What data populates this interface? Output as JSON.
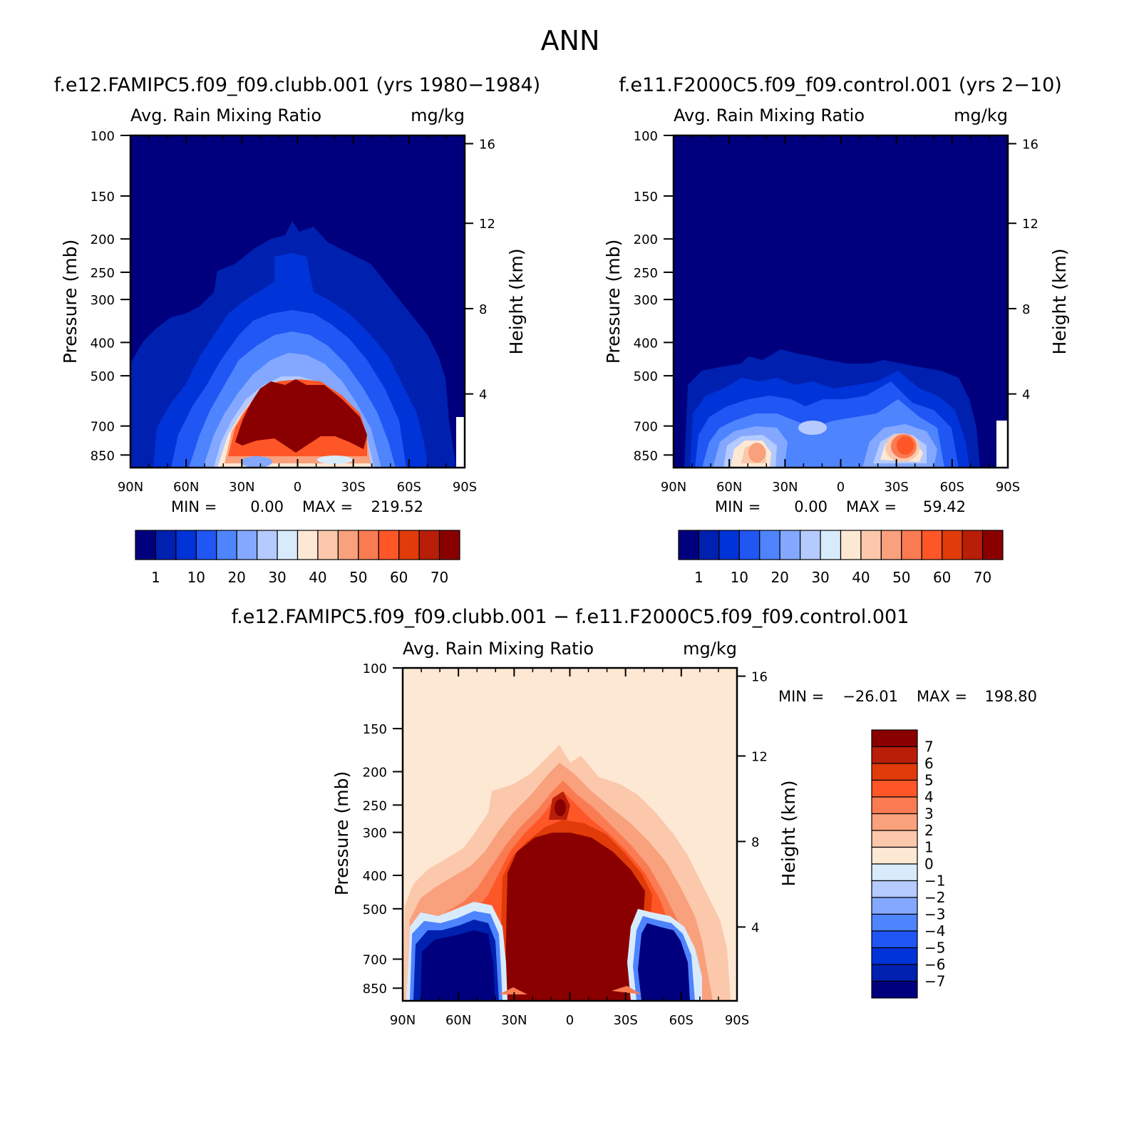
{
  "chart_data": [
    {
      "type": "heatmap",
      "panel": "top-left",
      "title": "f.e12.FAMIPC5.f09_f09.clubb.001 (yrs 1980−1984)",
      "variable": "Avg. Rain Mixing Ratio",
      "units": "mg/kg",
      "xlabel_ticks": [
        "90N",
        "60N",
        "30N",
        "0",
        "30S",
        "60S",
        "90S"
      ],
      "ylabel": "Pressure (mb)",
      "yticks": [
        "100",
        "150",
        "200",
        "250",
        "300",
        "400",
        "500",
        "700",
        "850"
      ],
      "y2label": "Height (km)",
      "y2ticks": [
        "16",
        "12",
        "8",
        "4"
      ],
      "min_text": "MIN =",
      "min_value": "0.00",
      "max_text": "MAX =",
      "max_value": "219.52",
      "colorbar_labels": [
        "1",
        "10",
        "20",
        "30",
        "40",
        "50",
        "60",
        "70"
      ],
      "colorbar_colors": [
        "#00007e",
        "#0020b0",
        "#0033d8",
        "#1f56f4",
        "#4f84ff",
        "#84a8ff",
        "#b5caff",
        "#d8ebfb",
        "#fde8d4",
        "#fbc8ac",
        "#f9a07c",
        "#fa7b52",
        "#ff5628",
        "#e03b09",
        "#b91e08",
        "#8a0000"
      ],
      "description_levels": "Large-scale maximum near equator 500-850 mb"
    },
    {
      "type": "heatmap",
      "panel": "top-right",
      "title": "f.e11.F2000C5.f09_f09.control.001 (yrs 2−10)",
      "variable": "Avg. Rain Mixing Ratio",
      "units": "mg/kg",
      "xlabel_ticks": [
        "90N",
        "60N",
        "30N",
        "0",
        "30S",
        "60S",
        "90S"
      ],
      "ylabel": "Pressure (mb)",
      "yticks": [
        "100",
        "150",
        "200",
        "250",
        "300",
        "400",
        "500",
        "700",
        "850"
      ],
      "y2label": "Height (km)",
      "y2ticks": [
        "16",
        "12",
        "8",
        "4"
      ],
      "min_text": "MIN =",
      "min_value": "0.00",
      "max_text": "MAX =",
      "max_value": "59.42",
      "colorbar_labels": [
        "1",
        "10",
        "20",
        "30",
        "40",
        "50",
        "60",
        "70"
      ],
      "colorbar_colors": [
        "#00007e",
        "#0020b0",
        "#0033d8",
        "#1f56f4",
        "#4f84ff",
        "#84a8ff",
        "#b5caff",
        "#d8ebfb",
        "#fde8d4",
        "#fbc8ac",
        "#f9a07c",
        "#fa7b52",
        "#ff5628",
        "#e03b09",
        "#b91e08",
        "#8a0000"
      ]
    },
    {
      "type": "heatmap",
      "panel": "bottom",
      "title": "f.e12.FAMIPC5.f09_f09.clubb.001 − f.e11.F2000C5.f09_f09.control.001",
      "variable": "Avg. Rain Mixing Ratio",
      "units": "mg/kg",
      "xlabel_ticks": [
        "90N",
        "60N",
        "30N",
        "0",
        "30S",
        "60S",
        "90S"
      ],
      "ylabel": "Pressure (mb)",
      "yticks": [
        "100",
        "150",
        "200",
        "250",
        "300",
        "400",
        "500",
        "700",
        "850"
      ],
      "y2label": "Height (km)",
      "y2ticks": [
        "16",
        "12",
        "8",
        "4"
      ],
      "min_text": "MIN =",
      "min_value": "−26.01",
      "max_text": "MAX =",
      "max_value": "198.80",
      "colorbar_labels": [
        "7",
        "6",
        "5",
        "4",
        "3",
        "2",
        "1",
        "0",
        "−1",
        "−2",
        "−3",
        "−4",
        "−5",
        "−6",
        "−7"
      ],
      "colorbar_colors": [
        "#8a0000",
        "#b91e08",
        "#e03b09",
        "#ff5628",
        "#fa7b52",
        "#f9a07c",
        "#fbc8ac",
        "#fde8d4",
        "#d8ebfb",
        "#b5caff",
        "#84a8ff",
        "#4f84ff",
        "#1f56f4",
        "#0033d8",
        "#0020b0",
        "#00007e"
      ]
    }
  ],
  "page": {
    "season": "ANN"
  }
}
